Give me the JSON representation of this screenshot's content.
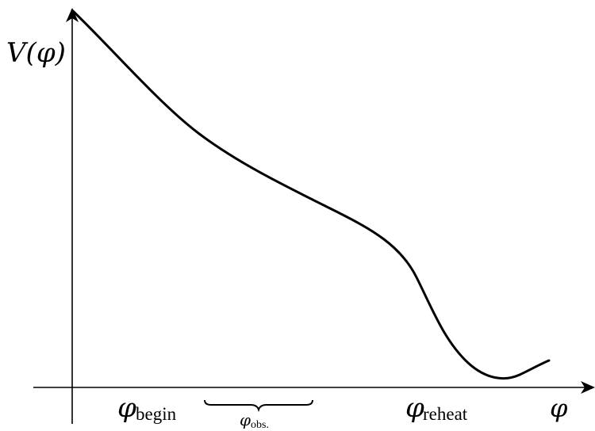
{
  "diagram": {
    "y_axis_label": "V(φ)",
    "x_axis_label": "φ",
    "labels": {
      "phi_begin": {
        "symbol": "φ",
        "subscript": "begin"
      },
      "phi_obs": {
        "symbol": "φ",
        "subscript": "obs."
      },
      "phi_reheat": {
        "symbol": "φ",
        "subscript": "reheat"
      }
    },
    "colors": {
      "ink": "#000000",
      "background": "#ffffff"
    }
  }
}
